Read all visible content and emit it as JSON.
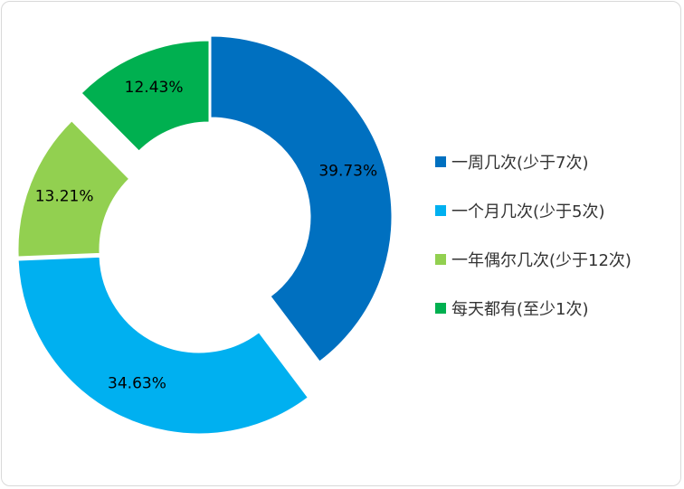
{
  "chart_data": {
    "type": "pie",
    "variant": "exploded donut",
    "title": "",
    "legend_position": "right",
    "slices": [
      {
        "label": "一周几次(少于7次)",
        "value": 39.73,
        "value_label": "39.73%",
        "color": "#0070C0"
      },
      {
        "label": "一个月几次(少于5次)",
        "value": 34.63,
        "value_label": "34.63%",
        "color": "#00B0F0"
      },
      {
        "label": "一年偶尔几次(少于12次)",
        "value": 13.21,
        "value_label": "13.21%",
        "color": "#92D050"
      },
      {
        "label": "每天都有(至少1次)",
        "value": 12.43,
        "value_label": "12.43%",
        "color": "#00B050"
      }
    ]
  }
}
